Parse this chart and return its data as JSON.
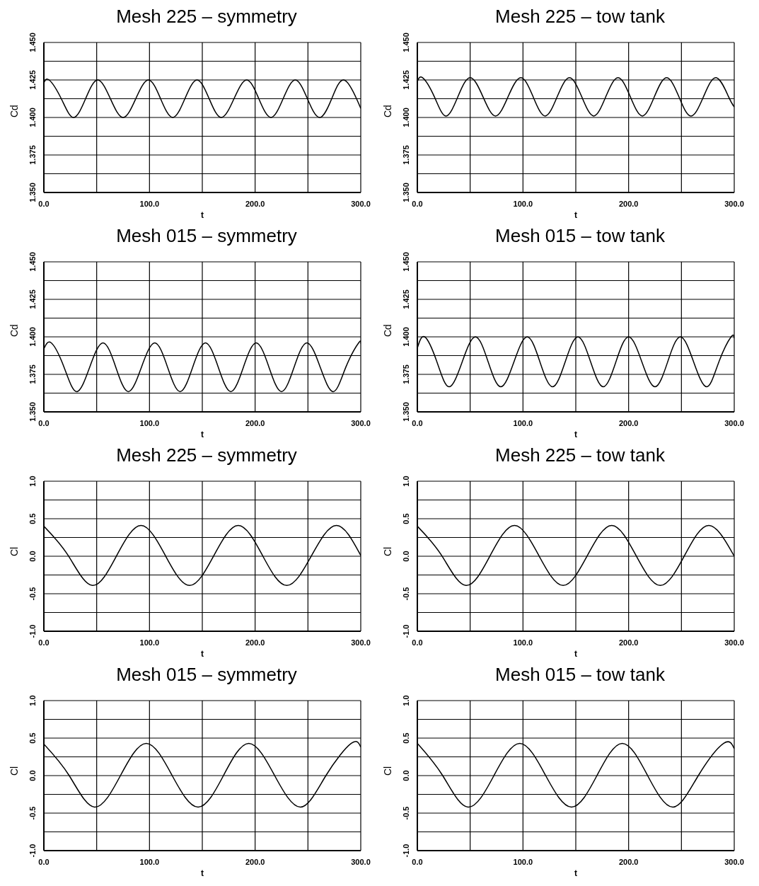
{
  "chart_data": [
    {
      "type": "line",
      "title": "Mesh 225 – symmetry",
      "xlabel": "t",
      "ylabel": "Cd",
      "grid": true,
      "marker": "none",
      "line_style": "solid",
      "color": "#000000",
      "x": [
        0,
        5,
        16.5,
        28,
        39.5,
        51,
        63,
        75,
        87,
        99,
        110.5,
        122,
        133.5,
        145,
        156.5,
        168,
        180,
        192,
        203.5,
        215,
        226.5,
        238,
        249.5,
        261,
        272.5,
        284,
        296,
        300
      ],
      "values": [
        1.423,
        1.425,
        1.4125,
        1.4,
        1.4125,
        1.425,
        1.4125,
        1.4,
        1.4125,
        1.425,
        1.4125,
        1.4,
        1.4125,
        1.425,
        1.4125,
        1.4,
        1.4125,
        1.425,
        1.4125,
        1.4,
        1.4125,
        1.425,
        1.4125,
        1.4,
        1.4125,
        1.425,
        1.4125,
        1.406
      ],
      "xlim": [
        0,
        300
      ],
      "xticks": [
        {
          "value": 0,
          "label": "0.0"
        },
        {
          "value": 50,
          "label": null
        },
        {
          "value": 100,
          "label": "100.0"
        },
        {
          "value": 150,
          "label": null
        },
        {
          "value": 200,
          "label": "200.0"
        },
        {
          "value": 250,
          "label": null
        },
        {
          "value": 300,
          "label": "300.0"
        }
      ],
      "ylim": [
        1.35,
        1.45
      ],
      "yticks": [
        {
          "value": 1.35,
          "label": "1.350"
        },
        {
          "value": 1.3625,
          "label": null
        },
        {
          "value": 1.375,
          "label": "1.375"
        },
        {
          "value": 1.3875,
          "label": null
        },
        {
          "value": 1.4,
          "label": "1.400"
        },
        {
          "value": 1.4125,
          "label": null
        },
        {
          "value": 1.425,
          "label": "1.425"
        },
        {
          "value": 1.4375,
          "label": null
        },
        {
          "value": 1.45,
          "label": "1.450"
        }
      ]
    },
    {
      "type": "line",
      "title": "Mesh 225 – tow tank",
      "xlabel": "t",
      "ylabel": "Cd",
      "grid": true,
      "marker": "none",
      "line_style": "solid",
      "color": "#000000",
      "x": [
        0,
        5,
        16,
        27,
        38.5,
        50,
        62,
        74,
        86,
        98,
        109.5,
        121,
        132.5,
        144,
        155.5,
        167,
        178.5,
        190,
        201.5,
        213,
        224.5,
        236,
        247.5,
        259,
        271,
        283,
        294.5,
        300
      ],
      "values": [
        1.424,
        1.4265,
        1.414,
        1.401,
        1.414,
        1.4265,
        1.414,
        1.401,
        1.414,
        1.4265,
        1.414,
        1.401,
        1.414,
        1.4265,
        1.414,
        1.401,
        1.414,
        1.4265,
        1.414,
        1.401,
        1.414,
        1.4265,
        1.414,
        1.401,
        1.414,
        1.4265,
        1.414,
        1.407
      ],
      "xlim": [
        0,
        300
      ],
      "xticks": [
        {
          "value": 0,
          "label": "0.0"
        },
        {
          "value": 50,
          "label": null
        },
        {
          "value": 100,
          "label": "100.0"
        },
        {
          "value": 150,
          "label": null
        },
        {
          "value": 200,
          "label": "200.0"
        },
        {
          "value": 250,
          "label": null
        },
        {
          "value": 300,
          "label": "300.0"
        }
      ],
      "ylim": [
        1.35,
        1.45
      ],
      "yticks": [
        {
          "value": 1.35,
          "label": "1.350"
        },
        {
          "value": 1.3625,
          "label": null
        },
        {
          "value": 1.375,
          "label": "1.375"
        },
        {
          "value": 1.3875,
          "label": null
        },
        {
          "value": 1.4,
          "label": "1.400"
        },
        {
          "value": 1.4125,
          "label": null
        },
        {
          "value": 1.425,
          "label": "1.425"
        },
        {
          "value": 1.4375,
          "label": null
        },
        {
          "value": 1.45,
          "label": "1.450"
        }
      ]
    },
    {
      "type": "line",
      "title": "Mesh 015 – symmetry",
      "xlabel": "t",
      "ylabel": "Cd",
      "grid": true,
      "marker": "none",
      "line_style": "solid",
      "color": "#000000",
      "x": [
        0,
        7,
        19,
        31,
        43.5,
        56,
        68,
        80,
        92.5,
        105,
        117,
        129,
        141,
        153,
        165,
        177,
        189,
        201,
        213,
        225,
        237,
        249,
        261.5,
        274,
        286,
        298,
        300
      ],
      "values": [
        1.392,
        1.396,
        1.38,
        1.3635,
        1.38,
        1.396,
        1.38,
        1.3635,
        1.38,
        1.396,
        1.38,
        1.3635,
        1.38,
        1.396,
        1.38,
        1.3635,
        1.38,
        1.396,
        1.38,
        1.3635,
        1.38,
        1.396,
        1.38,
        1.3635,
        1.38,
        1.396,
        1.3955
      ],
      "xlim": [
        0,
        300
      ],
      "xticks": [
        {
          "value": 0,
          "label": "0.0"
        },
        {
          "value": 50,
          "label": null
        },
        {
          "value": 100,
          "label": "100.0"
        },
        {
          "value": 150,
          "label": null
        },
        {
          "value": 200,
          "label": "200.0"
        },
        {
          "value": 250,
          "label": null
        },
        {
          "value": 300,
          "label": "300.0"
        }
      ],
      "ylim": [
        1.35,
        1.45
      ],
      "yticks": [
        {
          "value": 1.35,
          "label": "1.350"
        },
        {
          "value": 1.3625,
          "label": null
        },
        {
          "value": 1.375,
          "label": "1.375"
        },
        {
          "value": 1.3875,
          "label": null
        },
        {
          "value": 1.4,
          "label": "1.400"
        },
        {
          "value": 1.4125,
          "label": null
        },
        {
          "value": 1.425,
          "label": "1.425"
        },
        {
          "value": 1.4375,
          "label": null
        },
        {
          "value": 1.45,
          "label": "1.450"
        }
      ]
    },
    {
      "type": "line",
      "title": "Mesh 015 – tow tank",
      "xlabel": "t",
      "ylabel": "Cd",
      "grid": true,
      "marker": "none",
      "line_style": "solid",
      "color": "#000000",
      "x": [
        0,
        7,
        18.5,
        30,
        42.5,
        55,
        67,
        79,
        91.5,
        104,
        116,
        128,
        140,
        152,
        164,
        176,
        188,
        200,
        212.5,
        225,
        237,
        249,
        261.5,
        274,
        285.5,
        297,
        300
      ],
      "values": [
        1.3925,
        1.4,
        1.3834,
        1.3667,
        1.3834,
        1.4,
        1.3834,
        1.3667,
        1.3834,
        1.4,
        1.3834,
        1.3667,
        1.3834,
        1.4,
        1.3834,
        1.3667,
        1.3834,
        1.4,
        1.3834,
        1.3667,
        1.3834,
        1.4,
        1.3834,
        1.3667,
        1.3834,
        1.4,
        1.399
      ],
      "xlim": [
        0,
        300
      ],
      "xticks": [
        {
          "value": 0,
          "label": "0.0"
        },
        {
          "value": 50,
          "label": null
        },
        {
          "value": 100,
          "label": "100.0"
        },
        {
          "value": 150,
          "label": null
        },
        {
          "value": 200,
          "label": "200.0"
        },
        {
          "value": 250,
          "label": null
        },
        {
          "value": 300,
          "label": "300.0"
        }
      ],
      "ylim": [
        1.35,
        1.45
      ],
      "yticks": [
        {
          "value": 1.35,
          "label": "1.350"
        },
        {
          "value": 1.3625,
          "label": null
        },
        {
          "value": 1.375,
          "label": "1.375"
        },
        {
          "value": 1.3875,
          "label": null
        },
        {
          "value": 1.4,
          "label": "1.400"
        },
        {
          "value": 1.4125,
          "label": null
        },
        {
          "value": 1.425,
          "label": "1.425"
        },
        {
          "value": 1.4375,
          "label": null
        },
        {
          "value": 1.45,
          "label": "1.450"
        }
      ]
    },
    {
      "type": "line",
      "title": "Mesh 225 – symmetry",
      "xlabel": "t",
      "ylabel": "Cl",
      "grid": true,
      "marker": "none",
      "line_style": "solid",
      "color": "#000000",
      "x": [
        0,
        23,
        46,
        69,
        92,
        115,
        138,
        161,
        184,
        207,
        230,
        253.5,
        277,
        300
      ],
      "values": [
        0.4,
        0.01,
        -0.39,
        0.01,
        0.41,
        0.01,
        -0.39,
        0.01,
        0.41,
        0.01,
        -0.39,
        0.01,
        0.41,
        0.01
      ],
      "xlim": [
        0,
        300
      ],
      "xticks": [
        {
          "value": 0,
          "label": "0.0"
        },
        {
          "value": 50,
          "label": null
        },
        {
          "value": 100,
          "label": "100.0"
        },
        {
          "value": 150,
          "label": null
        },
        {
          "value": 200,
          "label": "200.0"
        },
        {
          "value": 250,
          "label": null
        },
        {
          "value": 300,
          "label": "300.0"
        }
      ],
      "ylim": [
        -1,
        1
      ],
      "yticks": [
        {
          "value": -1,
          "label": "-1.0"
        },
        {
          "value": -0.75,
          "label": null
        },
        {
          "value": -0.5,
          "label": "-0.5"
        },
        {
          "value": -0.25,
          "label": null
        },
        {
          "value": 0,
          "label": "0.0"
        },
        {
          "value": 0.25,
          "label": null
        },
        {
          "value": 0.5,
          "label": "0.5"
        },
        {
          "value": 0.75,
          "label": null
        },
        {
          "value": 1,
          "label": "1.0"
        }
      ]
    },
    {
      "type": "line",
      "title": "Mesh 225 – tow tank",
      "xlabel": "t",
      "ylabel": "Cl",
      "grid": true,
      "marker": "none",
      "line_style": "solid",
      "color": "#000000",
      "x": [
        0,
        23,
        46,
        69,
        92,
        115,
        138,
        161,
        184,
        207,
        230,
        253,
        276,
        300
      ],
      "values": [
        0.4,
        0.01,
        -0.39,
        0.01,
        0.41,
        0.01,
        -0.39,
        0.01,
        0.41,
        0.01,
        -0.39,
        0.01,
        0.41,
        0.0
      ],
      "xlim": [
        0,
        300
      ],
      "xticks": [
        {
          "value": 0,
          "label": "0.0"
        },
        {
          "value": 50,
          "label": null
        },
        {
          "value": 100,
          "label": "100.0"
        },
        {
          "value": 150,
          "label": null
        },
        {
          "value": 200,
          "label": "200.0"
        },
        {
          "value": 250,
          "label": null
        },
        {
          "value": 300,
          "label": "300.0"
        }
      ],
      "ylim": [
        -1,
        1
      ],
      "yticks": [
        {
          "value": -1,
          "label": "-1.0"
        },
        {
          "value": -0.75,
          "label": null
        },
        {
          "value": -0.5,
          "label": "-0.5"
        },
        {
          "value": -0.25,
          "label": null
        },
        {
          "value": 0,
          "label": "0.0"
        },
        {
          "value": 0.25,
          "label": null
        },
        {
          "value": 0.5,
          "label": "0.5"
        },
        {
          "value": 0.75,
          "label": null
        },
        {
          "value": 1,
          "label": "1.0"
        }
      ]
    },
    {
      "type": "line",
      "title": "Mesh 015 – symmetry",
      "xlabel": "t",
      "ylabel": "Cl",
      "grid": true,
      "marker": "none",
      "line_style": "solid",
      "color": "#000000",
      "x": [
        0,
        24,
        48,
        72.5,
        97,
        121.5,
        146,
        170,
        194,
        218.5,
        243,
        267,
        291,
        300
      ],
      "values": [
        0.42,
        0.0,
        -0.42,
        0.0,
        0.43,
        0.0,
        -0.42,
        0.0,
        0.43,
        0.0,
        -0.42,
        0.0,
        0.43,
        0.38
      ],
      "xlim": [
        0,
        300
      ],
      "xticks": [
        {
          "value": 0,
          "label": "0.0"
        },
        {
          "value": 50,
          "label": null
        },
        {
          "value": 100,
          "label": "100.0"
        },
        {
          "value": 150,
          "label": null
        },
        {
          "value": 200,
          "label": "200.0"
        },
        {
          "value": 250,
          "label": null
        },
        {
          "value": 300,
          "label": "300.0"
        }
      ],
      "ylim": [
        -1,
        1
      ],
      "yticks": [
        {
          "value": -1,
          "label": "-1.0"
        },
        {
          "value": -0.75,
          "label": null
        },
        {
          "value": -0.5,
          "label": "-0.5"
        },
        {
          "value": -0.25,
          "label": null
        },
        {
          "value": 0,
          "label": "0.0"
        },
        {
          "value": 0.25,
          "label": null
        },
        {
          "value": 0.5,
          "label": "0.5"
        },
        {
          "value": 0.75,
          "label": null
        },
        {
          "value": 1,
          "label": "1.0"
        }
      ]
    },
    {
      "type": "line",
      "title": "Mesh 015 – tow tank",
      "xlabel": "t",
      "ylabel": "Cl",
      "grid": true,
      "marker": "none",
      "line_style": "solid",
      "color": "#000000",
      "x": [
        0,
        24,
        48,
        72.5,
        97,
        121.5,
        146,
        170,
        194,
        218,
        242,
        266,
        290,
        300
      ],
      "values": [
        0.43,
        0.0,
        -0.42,
        0.0,
        0.43,
        0.0,
        -0.42,
        0.0,
        0.43,
        0.0,
        -0.42,
        0.0,
        0.43,
        0.36
      ],
      "xlim": [
        0,
        300
      ],
      "xticks": [
        {
          "value": 0,
          "label": "0.0"
        },
        {
          "value": 50,
          "label": null
        },
        {
          "value": 100,
          "label": "100.0"
        },
        {
          "value": 150,
          "label": null
        },
        {
          "value": 200,
          "label": "200.0"
        },
        {
          "value": 250,
          "label": null
        },
        {
          "value": 300,
          "label": "300.0"
        }
      ],
      "ylim": [
        -1,
        1
      ],
      "yticks": [
        {
          "value": -1,
          "label": "-1.0"
        },
        {
          "value": -0.75,
          "label": null
        },
        {
          "value": -0.5,
          "label": "-0.5"
        },
        {
          "value": -0.25,
          "label": null
        },
        {
          "value": 0,
          "label": "0.0"
        },
        {
          "value": 0.25,
          "label": null
        },
        {
          "value": 0.5,
          "label": "0.5"
        },
        {
          "value": 0.75,
          "label": null
        },
        {
          "value": 1,
          "label": "1.0"
        }
      ]
    }
  ]
}
